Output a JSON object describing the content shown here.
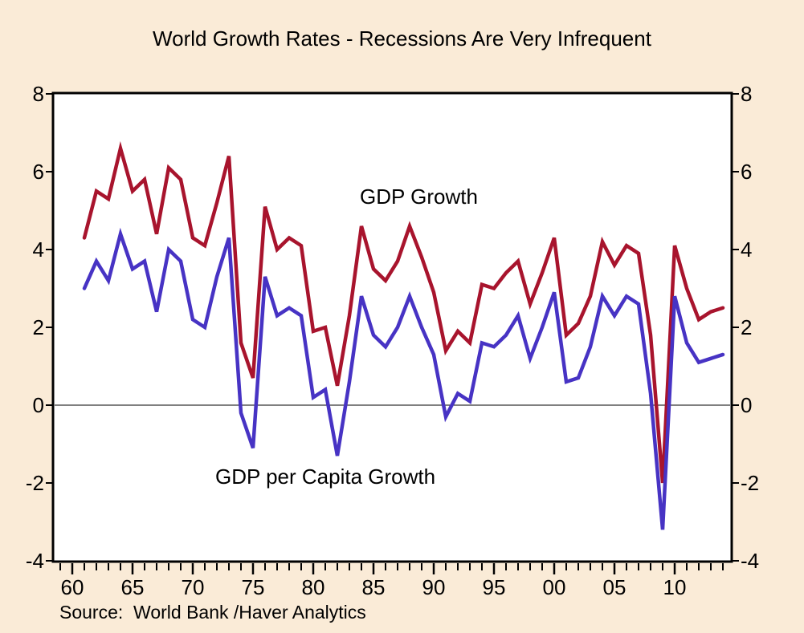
{
  "title": "World Growth Rates - Recessions Are Very Infrequent",
  "source": "Source:  World Bank /Haver Analytics",
  "colors": {
    "background": "#FAEBD7",
    "plot_background": "#FFFFFF",
    "frame": "#000000",
    "zero_line": "#000000",
    "gdp_growth": "#A8142D",
    "gdp_per_capita_growth": "#4733C4"
  },
  "chart_data": {
    "type": "line",
    "title": "World Growth Rates - Recessions Are Very Infrequent",
    "xlabel": "",
    "ylabel": "",
    "ylim": [
      -4,
      8
    ],
    "grid": false,
    "zero_line": true,
    "legend_position": "inline-annotations",
    "x": [
      1961,
      1962,
      1963,
      1964,
      1965,
      1966,
      1967,
      1968,
      1969,
      1970,
      1971,
      1972,
      1973,
      1974,
      1975,
      1976,
      1977,
      1978,
      1979,
      1980,
      1981,
      1982,
      1983,
      1984,
      1985,
      1986,
      1987,
      1988,
      1989,
      1990,
      1991,
      1992,
      1993,
      1994,
      1995,
      1996,
      1997,
      1998,
      1999,
      2000,
      2001,
      2002,
      2003,
      2004,
      2005,
      2006,
      2007,
      2008,
      2009,
      2010,
      2011,
      2012,
      2013,
      2014
    ],
    "series": [
      {
        "name": "GDP Growth",
        "color": "#A8142D",
        "values": [
          4.3,
          5.5,
          5.3,
          6.6,
          5.5,
          5.8,
          4.4,
          6.1,
          5.8,
          4.3,
          4.1,
          5.2,
          6.4,
          1.6,
          0.7,
          5.1,
          4.0,
          4.3,
          4.1,
          1.9,
          2.0,
          0.5,
          2.3,
          4.6,
          3.5,
          3.2,
          3.7,
          4.6,
          3.8,
          2.9,
          1.4,
          1.9,
          1.6,
          3.1,
          3.0,
          3.4,
          3.7,
          2.6,
          3.4,
          4.3,
          1.8,
          2.1,
          2.8,
          4.2,
          3.6,
          4.1,
          3.9,
          1.8,
          -2.0,
          4.1,
          3.0,
          2.2,
          2.4,
          2.5
        ]
      },
      {
        "name": "GDP per Capita Growth",
        "color": "#4733C4",
        "values": [
          3.0,
          3.7,
          3.2,
          4.4,
          3.5,
          3.7,
          2.4,
          4.0,
          3.7,
          2.2,
          2.0,
          3.3,
          4.3,
          -0.2,
          -1.1,
          3.3,
          2.3,
          2.5,
          2.3,
          0.2,
          0.4,
          -1.3,
          0.6,
          2.8,
          1.8,
          1.5,
          2.0,
          2.8,
          2.0,
          1.3,
          -0.3,
          0.3,
          0.1,
          1.6,
          1.5,
          1.8,
          2.3,
          1.2,
          2.0,
          2.9,
          0.6,
          0.7,
          1.5,
          2.8,
          2.3,
          2.8,
          2.6,
          0.3,
          -3.2,
          2.8,
          1.6,
          1.1,
          1.2,
          1.3
        ]
      }
    ],
    "yticks": {
      "values": [
        8,
        6,
        4,
        2,
        0,
        -2,
        -4
      ],
      "labels": [
        "8",
        "6",
        "4",
        "2",
        "0",
        "-2",
        "-4"
      ],
      "sides": "both"
    },
    "xticks": {
      "major_years": [
        1960,
        1965,
        1970,
        1975,
        1980,
        1985,
        1990,
        1995,
        2000,
        2005,
        2010
      ],
      "major_labels": [
        "60",
        "65",
        "70",
        "75",
        "80",
        "85",
        "90",
        "95",
        "00",
        "05",
        "10"
      ],
      "minor_every_year": true
    }
  }
}
